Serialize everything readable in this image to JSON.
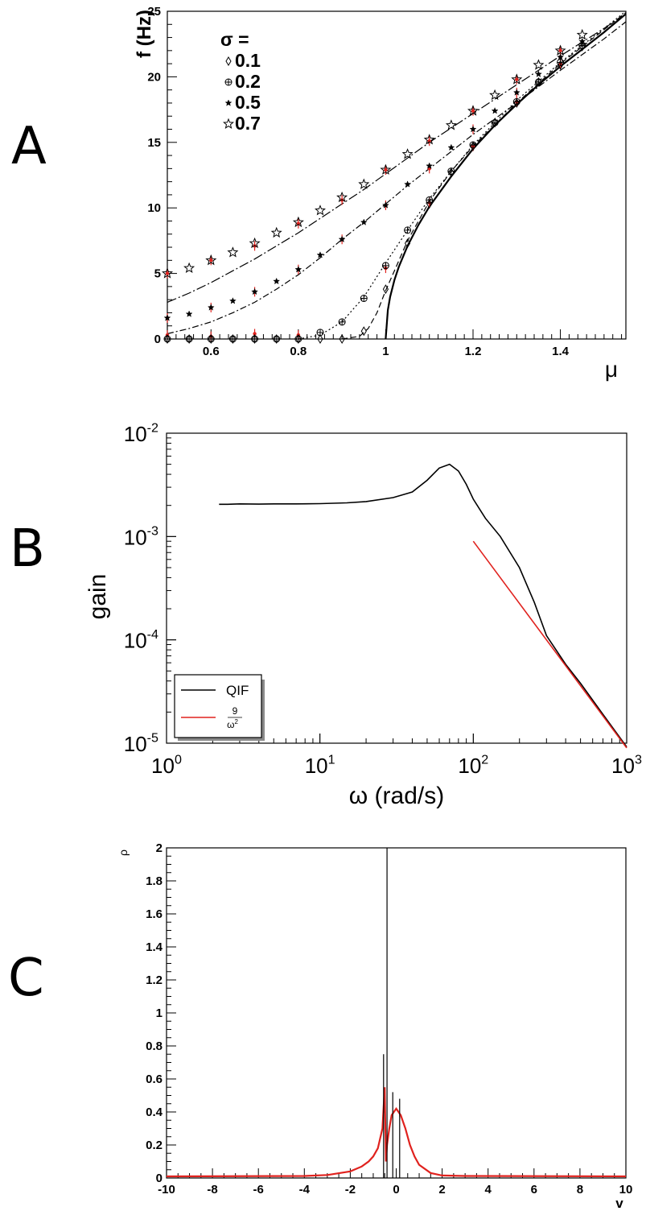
{
  "panels": {
    "a_letter": "A",
    "b_letter": "B",
    "c_letter": "C"
  },
  "chart_data": [
    {
      "type": "scatter",
      "panel": "A",
      "xlabel": "μ",
      "ylabel": "f (Hz)",
      "xlim": [
        0.5,
        1.55
      ],
      "ylim": [
        0,
        25
      ],
      "xticks": [
        "0.6",
        "0.8",
        "1",
        "1.2",
        "1.4"
      ],
      "yticks": [
        "0",
        "5",
        "10",
        "15",
        "20",
        "25"
      ],
      "legend": {
        "title": "σ =",
        "position": "top-left",
        "entries": [
          "0.1",
          "0.2",
          "0.5",
          "0.7"
        ]
      },
      "theory_curves": [
        {
          "sigma": "0",
          "style": "solid",
          "x": [
            1.0,
            1.005,
            1.01,
            1.02,
            1.03,
            1.05,
            1.075,
            1.1,
            1.15,
            1.2,
            1.25,
            1.3,
            1.35,
            1.4,
            1.45,
            1.5,
            1.55
          ],
          "y": [
            0,
            2.2,
            3.2,
            4.5,
            5.5,
            7.1,
            8.7,
            10.1,
            12.4,
            14.5,
            16.3,
            17.9,
            19.4,
            20.8,
            22.1,
            23.4,
            24.8
          ]
        },
        {
          "sigma": "0.1",
          "style": "dashed",
          "x": [
            0.9,
            0.94,
            0.96,
            0.98,
            1.0,
            1.02,
            1.05,
            1.1,
            1.15,
            1.2,
            1.3,
            1.4,
            1.5,
            1.55
          ],
          "y": [
            0,
            0.2,
            0.8,
            2.0,
            3.7,
            5.2,
            7.5,
            10.5,
            12.8,
            14.7,
            18.0,
            21.0,
            23.6,
            24.9
          ]
        },
        {
          "sigma": "0.2",
          "style": "dotted",
          "x": [
            0.8,
            0.85,
            0.9,
            0.95,
            1.0,
            1.05,
            1.1,
            1.15,
            1.2,
            1.3,
            1.4,
            1.5,
            1.55
          ],
          "y": [
            0,
            0.3,
            1.3,
            3.2,
            5.8,
            8.3,
            10.7,
            12.8,
            14.8,
            18.2,
            21.1,
            23.7,
            25.0
          ]
        },
        {
          "sigma": "0.5",
          "style": "dash-dot",
          "x": [
            0.5,
            0.55,
            0.6,
            0.65,
            0.7,
            0.75,
            0.8,
            0.85,
            0.9,
            0.95,
            1.0,
            1.05,
            1.1,
            1.15,
            1.2,
            1.3,
            1.4,
            1.5,
            1.55
          ],
          "y": [
            0.4,
            0.8,
            1.3,
            2.0,
            2.8,
            3.8,
            4.9,
            6.2,
            7.6,
            8.9,
            10.3,
            11.7,
            13.0,
            14.3,
            15.6,
            18.0,
            20.5,
            22.9,
            24.2
          ]
        },
        {
          "sigma": "0.7",
          "style": "dash-dot-long",
          "x": [
            0.5,
            0.55,
            0.6,
            0.65,
            0.7,
            0.75,
            0.8,
            0.85,
            0.9,
            0.95,
            1.0,
            1.05,
            1.1,
            1.15,
            1.2,
            1.3,
            1.4,
            1.5,
            1.55
          ],
          "y": [
            2.8,
            3.5,
            4.3,
            5.2,
            6.1,
            7.1,
            8.1,
            9.2,
            10.3,
            11.4,
            12.6,
            13.8,
            15.0,
            16.1,
            17.2,
            19.4,
            21.6,
            23.7,
            24.8
          ]
        }
      ],
      "series": [
        {
          "name": "0.1",
          "marker": "diamond",
          "x": [
            0.5,
            0.55,
            0.6,
            0.65,
            0.7,
            0.75,
            0.8,
            0.85,
            0.9,
            0.95,
            1.0,
            1.05,
            1.1,
            1.15,
            1.2,
            1.25,
            1.3,
            1.35,
            1.4,
            1.45
          ],
          "y": [
            0,
            0,
            0,
            0,
            0,
            0,
            0,
            0,
            0,
            0.6,
            3.8,
            7.3,
            10.3,
            12.7,
            14.7,
            16.5,
            18.0,
            19.6,
            20.9,
            22.3
          ]
        },
        {
          "name": "0.2",
          "marker": "cross-circle",
          "x": [
            0.5,
            0.55,
            0.6,
            0.65,
            0.7,
            0.75,
            0.8,
            0.85,
            0.9,
            0.95,
            1.0,
            1.05,
            1.1,
            1.15,
            1.2,
            1.25,
            1.3,
            1.35,
            1.4,
            1.45
          ],
          "y": [
            0,
            0,
            0,
            0,
            0,
            0,
            0,
            0.5,
            1.3,
            3.1,
            5.6,
            8.3,
            10.6,
            12.8,
            14.8,
            16.5,
            18.1,
            19.6,
            21.1,
            22.4
          ]
        },
        {
          "name": "0.5",
          "marker": "star-small",
          "x": [
            0.5,
            0.55,
            0.6,
            0.65,
            0.7,
            0.75,
            0.8,
            0.85,
            0.9,
            0.95,
            1.0,
            1.05,
            1.1,
            1.15,
            1.2,
            1.25,
            1.3,
            1.35,
            1.4,
            1.45
          ],
          "y": [
            1.6,
            1.9,
            2.4,
            2.9,
            3.6,
            4.4,
            5.3,
            6.4,
            7.6,
            8.9,
            10.2,
            11.8,
            13.2,
            14.6,
            16.0,
            17.4,
            18.8,
            20.2,
            21.5,
            22.7
          ]
        },
        {
          "name": "0.7",
          "marker": "star-open",
          "x": [
            0.5,
            0.55,
            0.6,
            0.65,
            0.7,
            0.75,
            0.8,
            0.85,
            0.9,
            0.95,
            1.0,
            1.05,
            1.1,
            1.15,
            1.2,
            1.25,
            1.3,
            1.35,
            1.4,
            1.45
          ],
          "y": [
            5.0,
            5.4,
            6.0,
            6.6,
            7.3,
            8.1,
            8.9,
            9.8,
            10.8,
            11.8,
            12.9,
            14.1,
            15.2,
            16.3,
            17.4,
            18.6,
            19.8,
            20.9,
            22.0,
            23.2
          ]
        }
      ],
      "red_markers": [
        {
          "x": 0.5,
          "y": 0.3
        },
        {
          "x": 0.5,
          "y": 1.6
        },
        {
          "x": 0.5,
          "y": 5.0
        },
        {
          "x": 0.6,
          "y": 0.2
        },
        {
          "x": 0.6,
          "y": 2.4
        },
        {
          "x": 0.6,
          "y": 6.0
        },
        {
          "x": 0.7,
          "y": 0.4
        },
        {
          "x": 0.7,
          "y": 3.6
        },
        {
          "x": 0.7,
          "y": 7.1
        },
        {
          "x": 0.8,
          "y": 0.3
        },
        {
          "x": 0.8,
          "y": 5.3
        },
        {
          "x": 0.8,
          "y": 8.8
        },
        {
          "x": 0.9,
          "y": 7.6
        },
        {
          "x": 0.9,
          "y": 10.6
        },
        {
          "x": 1.0,
          "y": 5.4
        },
        {
          "x": 1.0,
          "y": 10.2
        },
        {
          "x": 1.0,
          "y": 12.9
        },
        {
          "x": 1.1,
          "y": 10.4
        },
        {
          "x": 1.1,
          "y": 13.0
        },
        {
          "x": 1.1,
          "y": 15.1
        },
        {
          "x": 1.2,
          "y": 14.7
        },
        {
          "x": 1.2,
          "y": 16.0
        },
        {
          "x": 1.2,
          "y": 17.4
        },
        {
          "x": 1.3,
          "y": 18.1
        },
        {
          "x": 1.3,
          "y": 18.8
        },
        {
          "x": 1.3,
          "y": 19.8
        },
        {
          "x": 1.4,
          "y": 21.0
        },
        {
          "x": 1.4,
          "y": 21.5
        },
        {
          "x": 1.4,
          "y": 22.0
        }
      ],
      "colors": {
        "marker": "#000000",
        "red": "#e0221e"
      }
    },
    {
      "type": "line",
      "panel": "B",
      "scale": "log-log",
      "xlabel": "ω (rad/s)",
      "ylabel": "gain",
      "xlim": [
        1,
        1000
      ],
      "ylim": [
        1e-05,
        0.01
      ],
      "xtick_labels": [
        {
          "base": "10",
          "exp": "0"
        },
        {
          "base": "10",
          "exp": "1"
        },
        {
          "base": "10",
          "exp": "2"
        },
        {
          "base": "10",
          "exp": "3"
        }
      ],
      "ytick_labels": [
        {
          "base": "10",
          "exp": "-5"
        },
        {
          "base": "10",
          "exp": "-4"
        },
        {
          "base": "10",
          "exp": "-3"
        },
        {
          "base": "10",
          "exp": "-2"
        }
      ],
      "legend": {
        "position": "bottom-left",
        "entries": [
          {
            "label": "QIF"
          },
          {
            "numerator": "9",
            "denominator": "ω",
            "denominator_exp": "2"
          }
        ]
      },
      "series": [
        {
          "name": "QIF",
          "color": "#000000",
          "x": [
            2.2,
            2.5,
            3,
            4,
            5,
            7,
            10,
            15,
            20,
            30,
            40,
            50,
            60,
            70,
            80,
            90,
            100,
            120,
            150,
            200,
            250,
            300,
            400,
            500,
            700,
            1000
          ],
          "y": [
            0.00205,
            0.00205,
            0.00207,
            0.00206,
            0.00207,
            0.00207,
            0.00208,
            0.00212,
            0.00218,
            0.00238,
            0.0027,
            0.0035,
            0.0046,
            0.005,
            0.0043,
            0.0032,
            0.0023,
            0.0015,
            0.001,
            0.0005,
            0.00023,
            0.00011,
            5.8e-05,
            3.8e-05,
            1.9e-05,
            9.2e-06
          ]
        },
        {
          "name": "9/ω²",
          "color": "#e0221e",
          "x": [
            100,
            1000
          ],
          "y": [
            0.0009,
            9e-06
          ]
        }
      ]
    },
    {
      "type": "line",
      "panel": "C",
      "xlabel": "v",
      "ylabel": "ρ",
      "xlim": [
        -10,
        10
      ],
      "ylim": [
        0,
        2
      ],
      "xticks": [
        "-10",
        "-8",
        "-6",
        "-4",
        "-2",
        "0",
        "2",
        "4",
        "6",
        "8",
        "10"
      ],
      "yticks": [
        "0",
        "0.2",
        "0.4",
        "0.6",
        "0.8",
        "1",
        "1.2",
        "1.4",
        "1.6",
        "1.8",
        "2"
      ],
      "series": [
        {
          "name": "",
          "color": "#e0221e",
          "x": [
            -10,
            -4,
            -3,
            -2,
            -1.5,
            -1.2,
            -1.0,
            -0.8,
            -0.6,
            -0.5,
            -0.45,
            -0.4,
            -0.3,
            -0.2,
            -0.1,
            0,
            0.1,
            0.2,
            0.4,
            0.6,
            0.8,
            1.0,
            1.5,
            2,
            3,
            10
          ],
          "y": [
            0.01,
            0.012,
            0.018,
            0.04,
            0.07,
            0.1,
            0.13,
            0.18,
            0.3,
            0.55,
            0.1,
            0.2,
            0.3,
            0.38,
            0.4,
            0.42,
            0.4,
            0.38,
            0.3,
            0.2,
            0.13,
            0.08,
            0.03,
            0.015,
            0.012,
            0.01
          ]
        }
      ],
      "spikes": [
        {
          "x": -0.55,
          "y": 0.75,
          "color": "#000000"
        },
        {
          "x": -0.4,
          "y": 2.0,
          "color": "#000000"
        },
        {
          "x": -0.15,
          "y": 0.52,
          "color": "#000000"
        },
        {
          "x": 0.15,
          "y": 0.48,
          "color": "#000000"
        }
      ]
    }
  ]
}
